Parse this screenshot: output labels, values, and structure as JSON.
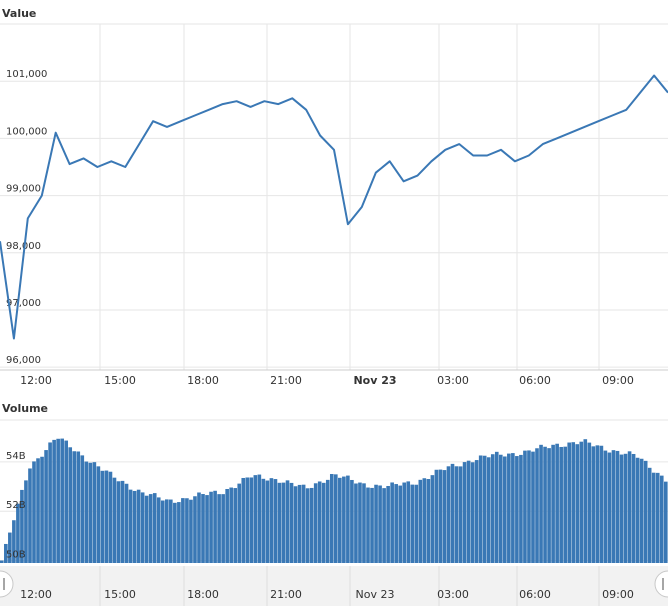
{
  "chart_data": [
    {
      "type": "line",
      "title": "Value",
      "color": "#3a78b5",
      "ylim": [
        95950,
        102000
      ],
      "yticks": [
        "96,000",
        "97,000",
        "98,000",
        "99,000",
        "100,000",
        "101,000"
      ],
      "ytick_values": [
        96000,
        97000,
        98000,
        99000,
        100000,
        101000
      ],
      "xticks": [
        {
          "label": "12:00",
          "bold": false
        },
        {
          "label": "15:00",
          "bold": false
        },
        {
          "label": "18:00",
          "bold": false
        },
        {
          "label": "21:00",
          "bold": false
        },
        {
          "label": "Nov 23",
          "bold": true
        },
        {
          "label": "03:00",
          "bold": false
        },
        {
          "label": "06:00",
          "bold": false
        },
        {
          "label": "09:00",
          "bold": false
        }
      ],
      "grid": true,
      "series": [
        {
          "time_hours": [
            0,
            0.5,
            1,
            1.5,
            2,
            2.5,
            3,
            3.5,
            4,
            4.5,
            5,
            5.5,
            6,
            6.5,
            7,
            7.5,
            8,
            8.5,
            9,
            9.5,
            10,
            10.5,
            11,
            11.5,
            12,
            12.5,
            13,
            13.5,
            14,
            14.5,
            15,
            15.5,
            16,
            16.5,
            17,
            17.5,
            18,
            18.5,
            19,
            19.5,
            20,
            20.5,
            21,
            21.5,
            22,
            22.5,
            23,
            23.5,
            24
          ],
          "values": [
            98200,
            96500,
            98600,
            99000,
            100100,
            99550,
            99650,
            99500,
            99600,
            99500,
            99900,
            100300,
            100200,
            100300,
            100400,
            100500,
            100600,
            100650,
            100550,
            100650,
            100600,
            100700,
            100500,
            100050,
            99800,
            98500,
            98800,
            99400,
            99600,
            99250,
            99350,
            99600,
            99800,
            99900,
            99700,
            99700,
            99800,
            99600,
            99700,
            99900,
            100000,
            100100,
            100200,
            100300,
            100400,
            100500,
            100800,
            101100,
            100800
          ]
        }
      ]
    },
    {
      "type": "bar",
      "title": "Volume",
      "color": "#3a78b5",
      "ylim": [
        49900,
        55700
      ],
      "yticks": [
        "50B",
        "52B",
        "54B"
      ],
      "ytick_values": [
        50000,
        52000,
        54000
      ],
      "xticks": [
        {
          "label": "12:00",
          "bold": false
        },
        {
          "label": "15:00",
          "bold": false
        },
        {
          "label": "18:00",
          "bold": false
        },
        {
          "label": "21:00",
          "bold": false
        },
        {
          "label": "Nov 23",
          "bold": false
        },
        {
          "label": "03:00",
          "bold": false
        },
        {
          "label": "06:00",
          "bold": false
        },
        {
          "label": "09:00",
          "bold": false
        }
      ],
      "grid": true,
      "series": [
        {
          "time_hours": [
            0,
            1,
            2,
            3,
            4,
            5,
            6,
            7,
            8,
            9,
            10,
            11,
            12,
            13,
            14,
            15,
            16,
            17,
            18,
            19,
            20,
            21,
            22,
            23,
            24
          ],
          "values": [
            50000,
            53800,
            55000,
            54200,
            53400,
            52800,
            52400,
            52600,
            52800,
            53400,
            53300,
            52900,
            53500,
            53100,
            53000,
            53200,
            53700,
            54100,
            54300,
            54400,
            54700,
            54800,
            54500,
            54200,
            53300
          ]
        }
      ]
    }
  ]
}
